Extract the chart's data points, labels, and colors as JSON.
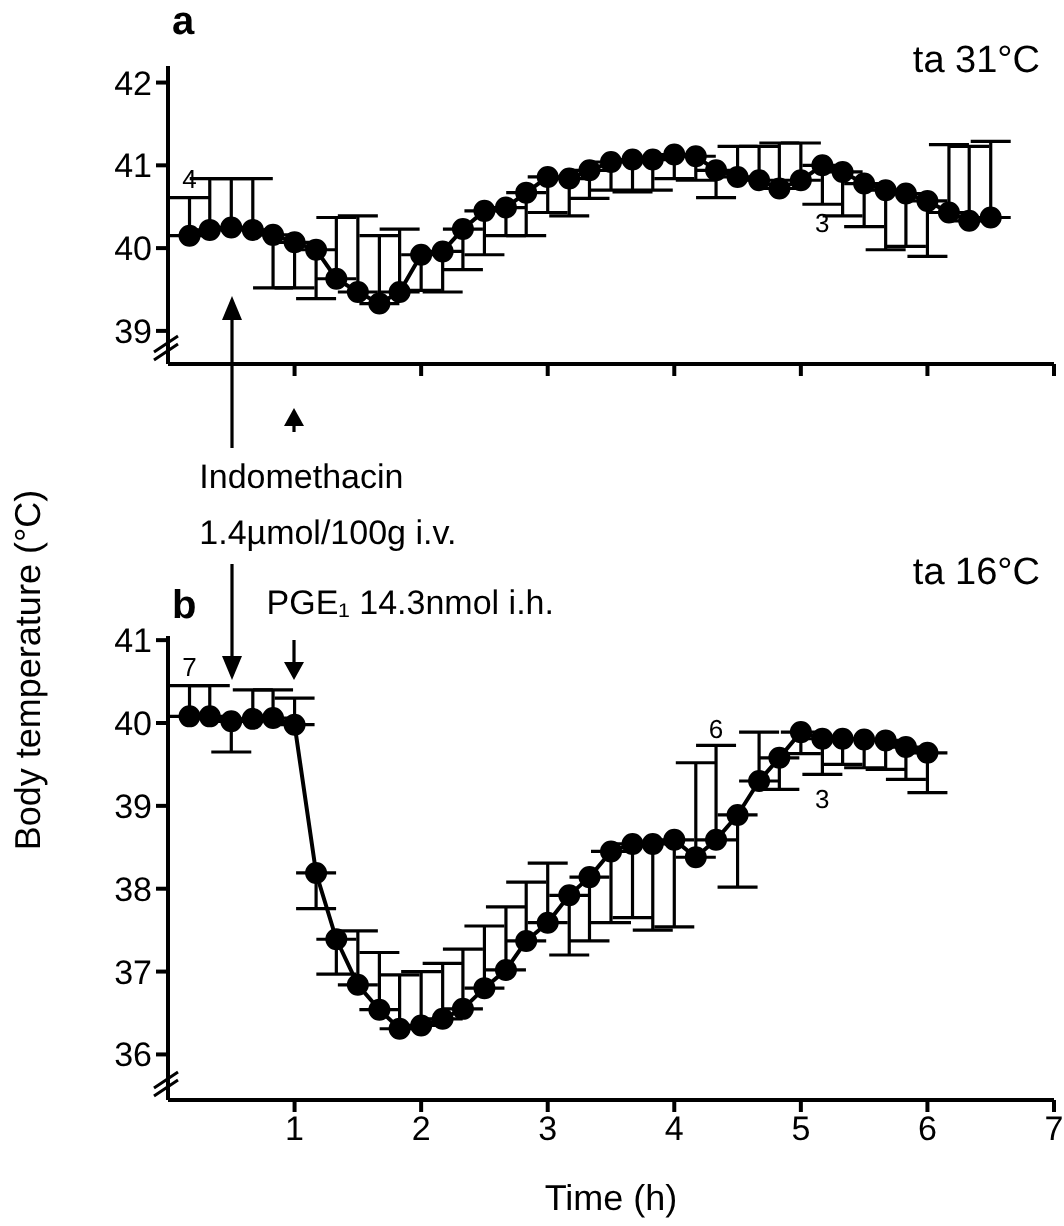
{
  "chart_data": [
    {
      "type": "line",
      "title": "a",
      "ylabel": "Body temperature (°C)",
      "annotations": [
        "ta 31°C",
        {
          "text": "4",
          "x": 0.17,
          "y": 40.82
        },
        {
          "text": "3",
          "x": 5.17,
          "y": 40.28
        }
      ],
      "x": [
        0.17,
        0.33,
        0.5,
        0.67,
        0.83,
        1,
        1.17,
        1.33,
        1.5,
        1.67,
        1.83,
        2,
        2.17,
        2.33,
        2.5,
        2.67,
        2.83,
        3,
        3.17,
        3.33,
        3.5,
        3.67,
        3.83,
        4,
        4.17,
        4.33,
        4.5,
        4.67,
        4.83,
        5,
        5.17,
        5.33,
        5.5,
        5.67,
        5.83,
        6,
        6.17,
        6.33,
        6.5
      ],
      "series": [
        {
          "color": "#000000",
          "values": [
            40.15,
            40.22,
            40.25,
            40.22,
            40.16,
            40.07,
            39.98,
            39.63,
            39.47,
            39.33,
            39.47,
            39.92,
            39.96,
            40.23,
            40.45,
            40.49,
            40.67,
            40.86,
            40.84,
            40.94,
            41.04,
            41.07,
            41.07,
            41.13,
            41.11,
            40.94,
            40.86,
            40.82,
            40.72,
            40.82,
            41.0,
            40.92,
            40.78,
            40.7,
            40.66,
            40.57,
            40.43,
            40.33,
            40.37
          ],
          "errors": [
            [
              40.15,
              40.61
            ],
            [
              40.22,
              40.84
            ],
            [
              40.25,
              40.84
            ],
            [
              40.22,
              40.84
            ],
            [
              39.52,
              40.16
            ],
            [
              39.52,
              40.07
            ],
            [
              39.39,
              39.98
            ],
            [
              39.63,
              40.37
            ],
            [
              39.47,
              40.39
            ],
            [
              39.33,
              40.15
            ],
            [
              39.47,
              40.23
            ],
            [
              39.49,
              39.92
            ],
            [
              39.47,
              39.96
            ],
            [
              39.74,
              40.23
            ],
            [
              39.92,
              40.45
            ],
            [
              40.15,
              40.49
            ],
            [
              40.15,
              40.67
            ],
            [
              40.43,
              40.86
            ],
            [
              40.39,
              40.84
            ],
            [
              40.6,
              40.94
            ],
            [
              40.7,
              41.04
            ],
            [
              40.68,
              41.07
            ],
            [
              40.7,
              41.07
            ],
            [
              40.84,
              41.13
            ],
            [
              40.82,
              41.11
            ],
            [
              40.61,
              40.94
            ],
            [
              40.86,
              41.23
            ],
            [
              40.82,
              41.23
            ],
            [
              40.72,
              41.27
            ],
            [
              40.82,
              41.27
            ],
            [
              40.53,
              41.0
            ],
            [
              40.39,
              40.92
            ],
            [
              40.26,
              40.78
            ],
            [
              39.98,
              40.7
            ],
            [
              40.02,
              40.66
            ],
            [
              39.9,
              40.57
            ],
            [
              40.43,
              41.25
            ],
            [
              40.33,
              41.23
            ],
            [
              40.37,
              41.29
            ]
          ]
        }
      ],
      "xlim": [
        0,
        7
      ],
      "xticks": [
        1,
        2,
        3,
        4,
        5,
        6,
        7
      ],
      "ylim": [
        38.6,
        42.2
      ],
      "yticks": [
        39,
        40,
        41,
        42
      ],
      "tick_labels": "y",
      "marker": "circle",
      "line_style": "solid"
    },
    {
      "type": "line",
      "title": "b",
      "xlabel": "Time (h)",
      "annotations": [
        "ta 16°C",
        "Indomethacin 1.4µmol/100g i.v.",
        "PGE₁ 14.3nmol i.h.",
        "7",
        "6",
        "3"
      ],
      "x": [
        0.17,
        0.33,
        0.5,
        0.67,
        0.83,
        1,
        1.17,
        1.33,
        1.5,
        1.67,
        1.83,
        2,
        2.17,
        2.33,
        2.5,
        2.67,
        2.83,
        3,
        3.17,
        3.33,
        3.5,
        3.67,
        3.83,
        4,
        4.17,
        4.33,
        4.5,
        4.67,
        4.83,
        5,
        5.17,
        5.33,
        5.5,
        5.67,
        5.83,
        6
      ],
      "series": [
        {
          "color": "#000000",
          "values": [
            40.08,
            40.08,
            40.02,
            40.05,
            40.06,
            39.98,
            38.19,
            37.39,
            36.84,
            36.54,
            36.31,
            36.35,
            36.43,
            36.55,
            36.8,
            37.02,
            37.37,
            37.59,
            37.92,
            38.14,
            38.45,
            38.54,
            38.54,
            38.59,
            38.38,
            38.59,
            38.89,
            39.3,
            39.58,
            39.89,
            39.81,
            39.81,
            39.8,
            39.79,
            39.71,
            39.64
          ],
          "errors": [
            [
              40.08,
              40.45
            ],
            [
              40.08,
              40.45
            ],
            [
              39.65,
              40.02
            ],
            [
              40.05,
              40.4
            ],
            [
              40.06,
              40.4
            ],
            [
              39.98,
              40.3
            ],
            [
              37.76,
              38.19
            ],
            [
              36.97,
              37.39
            ],
            [
              36.84,
              37.49
            ],
            [
              36.54,
              37.23
            ],
            [
              36.31,
              36.96
            ],
            [
              36.35,
              37.0
            ],
            [
              36.43,
              37.1
            ],
            [
              36.55,
              37.27
            ],
            [
              36.8,
              37.55
            ],
            [
              37.02,
              37.78
            ],
            [
              37.37,
              38.08
            ],
            [
              37.59,
              38.31
            ],
            [
              37.2,
              37.92
            ],
            [
              37.37,
              38.14
            ],
            [
              37.59,
              38.45
            ],
            [
              37.65,
              38.54
            ],
            [
              37.5,
              38.54
            ],
            [
              37.54,
              38.59
            ],
            [
              38.38,
              39.52
            ],
            [
              38.59,
              39.73
            ],
            [
              38.02,
              38.89
            ],
            [
              39.3,
              39.89
            ],
            [
              39.2,
              39.58
            ],
            [
              39.63,
              39.89
            ],
            [
              39.38,
              39.81
            ],
            [
              39.5,
              39.81
            ],
            [
              39.46,
              39.8
            ],
            [
              39.44,
              39.79
            ],
            [
              39.32,
              39.71
            ],
            [
              39.16,
              39.64
            ]
          ]
        }
      ],
      "xlim": [
        0,
        7
      ],
      "xticks": [
        1,
        2,
        3,
        4,
        5,
        6,
        7
      ],
      "ylim": [
        35.45,
        41.05
      ],
      "yticks": [
        36,
        37,
        38,
        39,
        40,
        41
      ],
      "marker": "circle",
      "line_style": "solid"
    }
  ]
}
